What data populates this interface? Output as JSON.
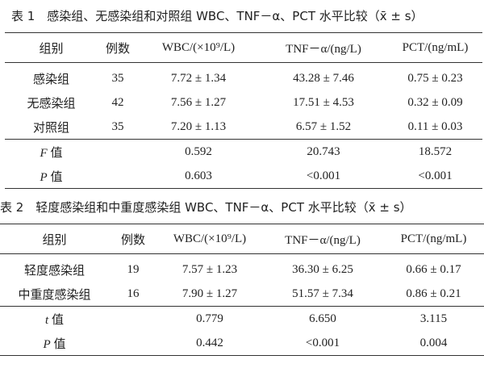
{
  "tables": [
    {
      "title": "表 1　感染组、无感染组和对照组 WBC、TNF－α、PCT 水平比较（x̄ ± s）",
      "header": [
        "组别",
        "例数",
        "WBC/(×10⁹/L)",
        "TNF－α/(ng/L)",
        "PCT/(ng/mL)"
      ],
      "rows": [
        [
          "感染组",
          "35",
          "7.72 ± 1.34",
          "43.28 ± 7.46",
          "0.75 ± 0.23"
        ],
        [
          "无感染组",
          "42",
          "7.56 ± 1.27",
          "17.51 ± 4.53",
          "0.32 ± 0.09"
        ],
        [
          "对照组",
          "35",
          "7.20 ± 1.13",
          "6.57 ± 1.52",
          "0.11 ± 0.03"
        ]
      ],
      "stats": [
        {
          "label": "F 值",
          "values": [
            "0.592",
            "20.743",
            "18.572"
          ]
        },
        {
          "label": "P 值",
          "values": [
            "0.603",
            "<0.001",
            "<0.001"
          ]
        }
      ]
    },
    {
      "title": "表 2　轻度感染组和中重度感染组 WBC、TNF－α、PCT 水平比较（x̄ ± s）",
      "header": [
        "组别",
        "例数",
        "WBC/(×10⁹/L)",
        "TNF－α/(ng/L)",
        "PCT/(ng/mL)"
      ],
      "rows": [
        [
          "轻度感染组",
          "19",
          "7.57 ± 1.23",
          "36.30 ± 6.25",
          "0.66 ± 0.17"
        ],
        [
          "中重度感染组",
          "16",
          "7.90 ± 1.27",
          "51.57 ± 7.34",
          "0.86 ± 0.21"
        ]
      ],
      "stats": [
        {
          "label": "t 值",
          "values": [
            "0.779",
            "6.650",
            "3.115"
          ]
        },
        {
          "label": "P 值",
          "values": [
            "0.442",
            "<0.001",
            "0.004"
          ]
        }
      ]
    }
  ]
}
